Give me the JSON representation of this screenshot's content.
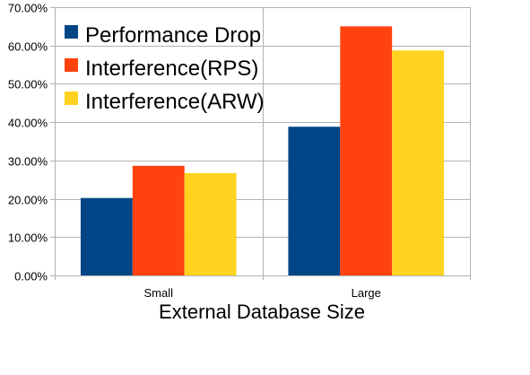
{
  "chart_data": {
    "type": "bar",
    "categories": [
      "Small",
      "Large"
    ],
    "series": [
      {
        "name": "Performance Drop",
        "values": [
          20.2,
          38.8
        ]
      },
      {
        "name": "Interference(RPS)",
        "values": [
          28.6,
          65.0
        ]
      },
      {
        "name": "Interference(ARW)",
        "values": [
          26.7,
          58.7
        ]
      }
    ],
    "series_colors": [
      "#004586",
      "#ff420e",
      "#ffd320"
    ],
    "yticks": [
      "0.00%",
      "10.00%",
      "20.00%",
      "30.00%",
      "40.00%",
      "50.00%",
      "60.00%",
      "70.00%"
    ],
    "ylim": [
      0,
      70
    ],
    "xlabel": "External Database Size",
    "ylabel": "",
    "title": "",
    "grid": true,
    "legend_position": "top-left"
  }
}
